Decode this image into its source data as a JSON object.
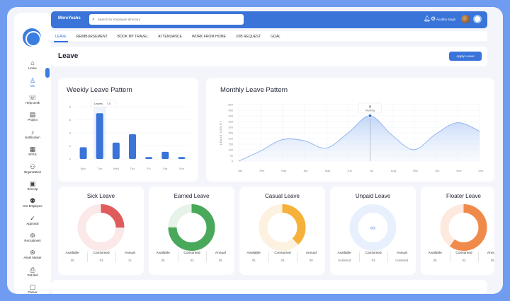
{
  "app": {
    "brand": "MoreYeahs"
  },
  "search": {
    "placeholder": "Search for employee directory"
  },
  "user": {
    "name": "Anubha Singh"
  },
  "sidebar": {
    "items": [
      {
        "label": "Home",
        "icon": "home-icon",
        "glyph": "⌂"
      },
      {
        "label": "Me",
        "icon": "user-icon",
        "glyph": "♙",
        "active": true
      },
      {
        "label": "Help Desk",
        "icon": "headset-icon",
        "glyph": "☏"
      },
      {
        "label": "Project",
        "icon": "clipboard-icon",
        "glyph": "▤"
      },
      {
        "label": "Notification",
        "icon": "bell-icon",
        "glyph": "♪"
      },
      {
        "label": "KPAS",
        "icon": "document-icon",
        "glyph": "▦"
      },
      {
        "label": "Organization",
        "icon": "organization-icon",
        "glyph": "⚇"
      },
      {
        "label": "Emcorp",
        "icon": "calendar-icon",
        "glyph": "▣"
      },
      {
        "label": "Our Employee",
        "icon": "team-icon",
        "glyph": "⚉"
      },
      {
        "label": "Approval",
        "icon": "check-circle-icon",
        "glyph": "✓"
      },
      {
        "label": "Recruitment",
        "icon": "recruitment-icon",
        "glyph": "⊚"
      },
      {
        "label": "Asset Master",
        "icon": "asset-icon",
        "glyph": "⊛"
      },
      {
        "label": "Pat Bell",
        "icon": "printer-icon",
        "glyph": "⎙"
      },
      {
        "label": "Career",
        "icon": "briefcase-icon",
        "glyph": "▢"
      }
    ]
  },
  "tabs": [
    "LEAVE",
    "REIMBURSEMENT",
    "BOOK MY TRAVEL",
    "ATTENDANCE",
    "WORK FROM HOME",
    "JOB REQUEST",
    "GOAL"
  ],
  "page": {
    "title": "Leave",
    "apply_label": "Apply Leave"
  },
  "chart_data": [
    {
      "type": "bar",
      "title": "Weekly Leave Pattern",
      "categories": [
        "Mon",
        "Tue",
        "Wed",
        "Thu",
        "Fri",
        "Sat",
        "Sun"
      ],
      "values": [
        1.8,
        7,
        2.5,
        3.8,
        0.3,
        1.1,
        0.3
      ],
      "ylim": [
        0,
        8
      ],
      "yticks": [
        0,
        2,
        4,
        6,
        8
      ],
      "highlight_index": 1,
      "tooltip": {
        "label": "Leaves",
        "value": "7.0"
      },
      "color": "#3a74d9"
    },
    {
      "type": "area",
      "title": "Monthly Leave Pattern",
      "ylabel": "LEAVE COUNT",
      "categories": [
        "Jan",
        "Feb",
        "Mar",
        "Apr",
        "May",
        "Jun",
        "Jul",
        "Aug",
        "Sep",
        "Oct",
        "Nov",
        "Dec"
      ],
      "values": [
        0,
        90,
        190,
        180,
        115,
        250,
        400,
        230,
        100,
        240,
        340,
        265
      ],
      "ylim": [
        0,
        500
      ],
      "yticks": [
        0,
        50,
        100,
        150,
        200,
        250,
        300,
        350,
        400,
        450,
        500
      ],
      "highlight_index": 6,
      "tooltip": {
        "label": "Working",
        "value": "5"
      },
      "color": "#8ab0ee"
    }
  ],
  "leave_types": [
    {
      "title": "Sick Leave",
      "available": "05",
      "consumed": "03",
      "annual": "12",
      "used_fraction": 0.25,
      "color": "#e05b5b",
      "track": "#fbe8e8"
    },
    {
      "title": "Earned Leave",
      "available": "05",
      "consumed": "03",
      "annual": "08",
      "used_fraction": 0.75,
      "color": "#4aa85a",
      "track": "#e6f3e8"
    },
    {
      "title": "Casual Leave",
      "available": "05",
      "consumed": "03",
      "annual": "08",
      "used_fraction": 0.38,
      "color": "#f5b13a",
      "track": "#fdf1df"
    },
    {
      "title": "Unpaid Leave",
      "available": "Unlimited",
      "consumed": "03",
      "annual": "Unlimited",
      "used_fraction": 0,
      "color": "#6f9cf0",
      "track": "#e8f0fd",
      "center": "∞"
    },
    {
      "title": "Floater Leave",
      "available": "05",
      "consumed": "02",
      "annual": "05",
      "used_fraction": 0.6,
      "color": "#f08a4b",
      "track": "#fde9de"
    }
  ],
  "stat_labels": {
    "available": "Available",
    "consumed": "Consumed",
    "annual": "Annual"
  }
}
